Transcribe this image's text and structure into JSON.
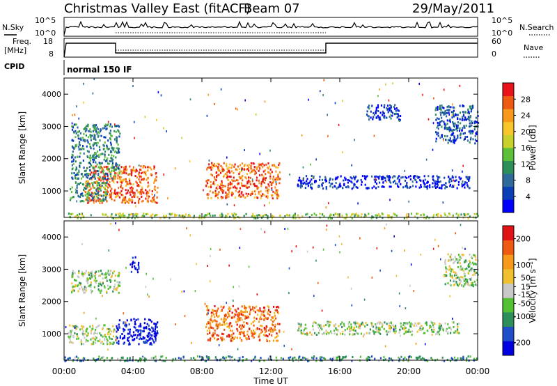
{
  "header": {
    "title": "Christmas Valley East (fitACF)",
    "beam": "Beam 07",
    "date": "29/May/2011"
  },
  "strips": {
    "nsky_label": "N.Sky",
    "nsearch_label": "N.Search",
    "noise_ticks": [
      "10^5",
      "10^0"
    ],
    "freq_label_1": "Freq.",
    "freq_label_2": "[MHz]",
    "freq_ticks": [
      "18",
      "8"
    ],
    "nave_label": "Nave",
    "nave_ticks": [
      "60",
      "0"
    ],
    "cpid_label": "CPID",
    "cpid_text": "normal 150 IF"
  },
  "chart_data": [
    {
      "type": "heatmap",
      "panel": "power",
      "ylabel": "Slant Range [km]",
      "xlabel": "",
      "x_ticks": [
        "00:00",
        "04:00",
        "08:00",
        "12:00",
        "16:00",
        "20:00",
        "00:00"
      ],
      "x_range_hours": [
        0,
        24
      ],
      "y_ticks": [
        1000,
        2000,
        3000,
        4000
      ],
      "ylim": [
        180,
        4500
      ],
      "colorbar": {
        "label": "Power [dB]",
        "ticks": [
          4,
          8,
          12,
          16,
          20,
          24,
          28
        ],
        "range": [
          0,
          32
        ],
        "colors": [
          "#0000ff",
          "#0a3fb6",
          "#2e6b9b",
          "#2f8f5b",
          "#5cc038",
          "#c8d12c",
          "#f7c62a",
          "#f79a1c",
          "#ef5a12",
          "#e8141a"
        ]
      },
      "regions": [
        {
          "t0": 1.2,
          "t1": 5.4,
          "r0": 650,
          "r1": 1800,
          "level": 0.85
        },
        {
          "t0": 0.3,
          "t1": 2.5,
          "r0": 700,
          "r1": 1300,
          "level": 0.35
        },
        {
          "t0": 8.2,
          "t1": 12.5,
          "r0": 800,
          "r1": 1900,
          "level": 0.85
        },
        {
          "t0": 0.4,
          "t1": 3.2,
          "r0": 1400,
          "r1": 3100,
          "level": 0.3
        },
        {
          "t0": 13.5,
          "t1": 23.5,
          "r0": 1100,
          "r1": 1500,
          "level": 0.1
        },
        {
          "t0": 21.5,
          "t1": 24.0,
          "r0": 2500,
          "r1": 3700,
          "level": 0.2
        },
        {
          "t0": 17.5,
          "t1": 19.5,
          "r0": 3200,
          "r1": 3700,
          "level": 0.15
        },
        {
          "t0": 0.0,
          "t1": 24.0,
          "r0": 180,
          "r1": 330,
          "level": 0.5
        }
      ]
    },
    {
      "type": "heatmap",
      "panel": "velocity",
      "ylabel": "Slant Range [km]",
      "xlabel": "Time UT",
      "x_ticks": [
        "00:00",
        "04:00",
        "08:00",
        "12:00",
        "16:00",
        "20:00",
        "00:00"
      ],
      "x_range_hours": [
        0,
        24
      ],
      "y_ticks": [
        1000,
        2000,
        3000,
        4000
      ],
      "ylim": [
        180,
        4500
      ],
      "colorbar": {
        "label": "Velocity [m s⁻¹]",
        "ticks": [
          200,
          100,
          50,
          15,
          -15,
          -50,
          -100,
          -200
        ],
        "range": [
          -250,
          250
        ],
        "colors": [
          "#0000e0",
          "#1f4fc8",
          "#2f8f5b",
          "#54c034",
          "#c8c8c8",
          "#f0c030",
          "#f59a1c",
          "#ef5a12",
          "#e01414"
        ]
      },
      "regions": [
        {
          "t0": 8.2,
          "t1": 12.5,
          "r0": 800,
          "r1": 1900,
          "level": 0.8
        },
        {
          "t0": 3.0,
          "t1": 5.4,
          "r0": 700,
          "r1": 1500,
          "level": 0.05
        },
        {
          "t0": 0.2,
          "t1": 3.0,
          "r0": 700,
          "r1": 1300,
          "level": 0.45
        },
        {
          "t0": 0.4,
          "t1": 3.2,
          "r0": 2300,
          "r1": 3000,
          "level": 0.45
        },
        {
          "t0": 3.8,
          "t1": 4.3,
          "r0": 2900,
          "r1": 3400,
          "level": 0.03
        },
        {
          "t0": 22.0,
          "t1": 24.0,
          "r0": 2500,
          "r1": 3500,
          "level": 0.45
        },
        {
          "t0": 13.5,
          "t1": 23.0,
          "r0": 1000,
          "r1": 1400,
          "level": 0.45
        },
        {
          "t0": 0.0,
          "t1": 24.0,
          "r0": 180,
          "r1": 330,
          "level": 0.3
        }
      ]
    }
  ]
}
